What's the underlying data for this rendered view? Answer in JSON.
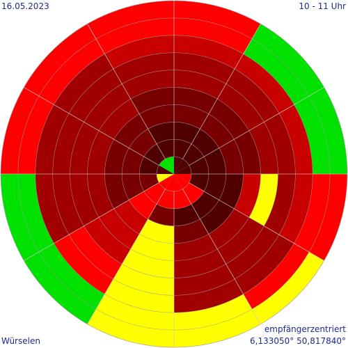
{
  "header": {
    "date": "16.05.2023",
    "time_range": "10 - 11 Uhr"
  },
  "footer": {
    "mode": "empfängerzentriert",
    "location": "Würselen",
    "coordinates": "6,133050° 50,817840°"
  },
  "colors": {
    "0": "#00e100",
    "1": "#ffff00",
    "2": "#ff0000",
    "3": "#c80000",
    "4": "#a00000",
    "5": "#780000",
    "6": "#500000",
    "grid": "#9a9a9a",
    "spoke": "#c8c8c8"
  },
  "chart_data": {
    "type": "polar-heatmap",
    "sectors": 12,
    "rings": 10,
    "start_angle_deg": 0,
    "direction": "clockwise",
    "grid": true,
    "cells": [
      [
        6,
        6,
        6,
        5,
        5,
        4,
        4,
        3,
        2,
        2
      ],
      [
        6,
        6,
        6,
        5,
        5,
        4,
        4,
        3,
        0,
        0
      ],
      [
        6,
        6,
        6,
        5,
        5,
        4,
        4,
        3,
        0,
        0
      ],
      [
        2,
        6,
        6,
        6,
        3,
        1,
        4,
        3,
        2,
        2
      ],
      [
        2,
        2,
        6,
        6,
        4,
        4,
        4,
        4,
        2,
        1
      ],
      [
        2,
        2,
        6,
        5,
        4,
        4,
        4,
        4,
        1,
        1
      ],
      [
        2,
        2,
        5,
        1,
        1,
        1,
        1,
        1,
        1,
        1
      ],
      [
        2,
        2,
        2,
        3,
        3,
        3,
        2,
        2,
        0,
        0
      ],
      [
        1,
        5,
        5,
        5,
        4,
        4,
        4,
        4,
        0,
        0
      ],
      [
        6,
        6,
        5,
        5,
        4,
        4,
        4,
        4,
        2,
        2
      ],
      [
        0,
        6,
        5,
        5,
        4,
        4,
        4,
        4,
        2,
        2
      ],
      [
        0,
        6,
        6,
        5,
        5,
        4,
        4,
        3,
        2,
        2
      ]
    ]
  }
}
